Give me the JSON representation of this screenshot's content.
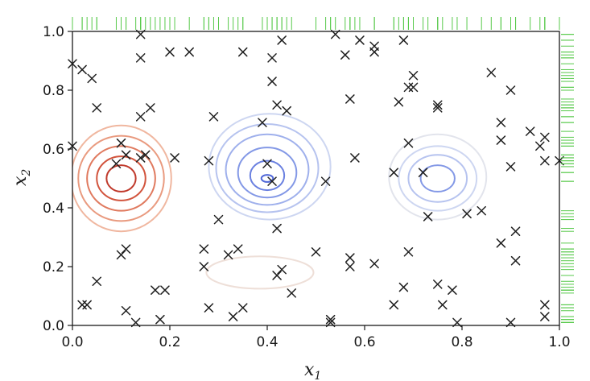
{
  "chart_data": {
    "type": "scatter",
    "overlay": "contour",
    "title": "",
    "xlabel": "x",
    "xlabel_subscript": "1",
    "ylabel": "x",
    "ylabel_subscript": "2",
    "xlim": [
      0,
      1
    ],
    "ylim": [
      0,
      1
    ],
    "xticks": [
      "0.0",
      "0.2",
      "0.4",
      "0.6",
      "0.8",
      "1.0"
    ],
    "yticks": [
      "0.0",
      "0.2",
      "0.4",
      "0.6",
      "0.8",
      "1.0"
    ],
    "grid": false,
    "legend": "none",
    "marker": "x",
    "rug_color": "#57c94a",
    "contour_colors": {
      "positive": [
        "#c0392b",
        "#d2543d",
        "#e07a5f",
        "#e99a7f",
        "#f0b7a0",
        "#f3cfc0",
        "#eedfd8"
      ],
      "negative": [
        "#5068d8",
        "#6a80e0",
        "#8398e6",
        "#9fb0ec",
        "#b6c3ef",
        "#cdd6f1",
        "#e2e4ec"
      ]
    },
    "contours": [
      {
        "sign": "positive",
        "level": 0,
        "cx": 0.1,
        "cy": 0.5,
        "rx": 0.03,
        "ry": 0.045
      },
      {
        "sign": "positive",
        "level": 1,
        "cx": 0.1,
        "cy": 0.5,
        "rx": 0.05,
        "ry": 0.075
      },
      {
        "sign": "positive",
        "level": 2,
        "cx": 0.1,
        "cy": 0.5,
        "rx": 0.07,
        "ry": 0.11
      },
      {
        "sign": "positive",
        "level": 3,
        "cx": 0.1,
        "cy": 0.5,
        "rx": 0.088,
        "ry": 0.145
      },
      {
        "sign": "positive",
        "level": 4,
        "cx": 0.1,
        "cy": 0.5,
        "rx": 0.103,
        "ry": 0.18
      },
      {
        "sign": "positive",
        "level": 6,
        "cx": 0.385,
        "cy": 0.18,
        "rx": 0.11,
        "ry": 0.055
      },
      {
        "sign": "negative",
        "level": 0,
        "cx": 0.4,
        "cy": 0.5,
        "rx": 0.012,
        "ry": 0.012
      },
      {
        "sign": "negative",
        "level": 1,
        "cx": 0.4,
        "cy": 0.51,
        "rx": 0.035,
        "ry": 0.05
      },
      {
        "sign": "negative",
        "level": 2,
        "cx": 0.4,
        "cy": 0.52,
        "rx": 0.06,
        "ry": 0.085
      },
      {
        "sign": "negative",
        "level": 3,
        "cx": 0.4,
        "cy": 0.53,
        "rx": 0.085,
        "ry": 0.12
      },
      {
        "sign": "negative",
        "level": 4,
        "cx": 0.4,
        "cy": 0.535,
        "rx": 0.105,
        "ry": 0.15
      },
      {
        "sign": "negative",
        "level": 5,
        "cx": 0.405,
        "cy": 0.54,
        "rx": 0.125,
        "ry": 0.18
      },
      {
        "sign": "negative",
        "level": 2,
        "cx": 0.75,
        "cy": 0.5,
        "rx": 0.035,
        "ry": 0.045
      },
      {
        "sign": "negative",
        "level": 4,
        "cx": 0.75,
        "cy": 0.5,
        "rx": 0.06,
        "ry": 0.08
      },
      {
        "sign": "negative",
        "level": 5,
        "cx": 0.75,
        "cy": 0.5,
        "rx": 0.08,
        "ry": 0.11
      },
      {
        "sign": "negative",
        "level": 6,
        "cx": 0.75,
        "cy": 0.505,
        "rx": 0.1,
        "ry": 0.145
      }
    ],
    "points": [
      [
        0.0,
        0.89
      ],
      [
        0.02,
        0.87
      ],
      [
        0.04,
        0.84
      ],
      [
        0.05,
        0.74
      ],
      [
        0.0,
        0.61
      ],
      [
        0.02,
        0.07
      ],
      [
        0.03,
        0.07
      ],
      [
        0.05,
        0.15
      ],
      [
        0.1,
        0.62
      ],
      [
        0.11,
        0.58
      ],
      [
        0.09,
        0.55
      ],
      [
        0.1,
        0.24
      ],
      [
        0.11,
        0.26
      ],
      [
        0.11,
        0.05
      ],
      [
        0.13,
        0.01
      ],
      [
        0.14,
        0.99
      ],
      [
        0.14,
        0.91
      ],
      [
        0.14,
        0.57
      ],
      [
        0.15,
        0.58
      ],
      [
        0.16,
        0.74
      ],
      [
        0.14,
        0.71
      ],
      [
        0.17,
        0.12
      ],
      [
        0.19,
        0.12
      ],
      [
        0.18,
        0.02
      ],
      [
        0.2,
        0.93
      ],
      [
        0.24,
        0.93
      ],
      [
        0.21,
        0.57
      ],
      [
        0.27,
        0.2
      ],
      [
        0.27,
        0.26
      ],
      [
        0.29,
        0.71
      ],
      [
        0.28,
        0.56
      ],
      [
        0.3,
        0.36
      ],
      [
        0.32,
        0.24
      ],
      [
        0.28,
        0.06
      ],
      [
        0.33,
        0.03
      ],
      [
        0.34,
        0.26
      ],
      [
        0.35,
        0.93
      ],
      [
        0.35,
        0.06
      ],
      [
        0.39,
        0.69
      ],
      [
        0.4,
        0.55
      ],
      [
        0.41,
        0.91
      ],
      [
        0.41,
        0.83
      ],
      [
        0.42,
        0.75
      ],
      [
        0.43,
        0.97
      ],
      [
        0.44,
        0.73
      ],
      [
        0.41,
        0.49
      ],
      [
        0.42,
        0.33
      ],
      [
        0.42,
        0.17
      ],
      [
        0.43,
        0.19
      ],
      [
        0.45,
        0.11
      ],
      [
        0.5,
        0.25
      ],
      [
        0.52,
        0.49
      ],
      [
        0.53,
        0.02
      ],
      [
        0.53,
        0.01
      ],
      [
        0.54,
        0.99
      ],
      [
        0.56,
        0.92
      ],
      [
        0.57,
        0.77
      ],
      [
        0.58,
        0.57
      ],
      [
        0.57,
        0.23
      ],
      [
        0.57,
        0.2
      ],
      [
        0.59,
        0.97
      ],
      [
        0.62,
        0.95
      ],
      [
        0.62,
        0.93
      ],
      [
        0.62,
        0.21
      ],
      [
        0.66,
        0.52
      ],
      [
        0.67,
        0.76
      ],
      [
        0.68,
        0.97
      ],
      [
        0.69,
        0.81
      ],
      [
        0.7,
        0.81
      ],
      [
        0.7,
        0.85
      ],
      [
        0.69,
        0.62
      ],
      [
        0.69,
        0.25
      ],
      [
        0.68,
        0.13
      ],
      [
        0.66,
        0.07
      ],
      [
        0.72,
        0.52
      ],
      [
        0.73,
        0.37
      ],
      [
        0.75,
        0.75
      ],
      [
        0.75,
        0.74
      ],
      [
        0.75,
        0.14
      ],
      [
        0.76,
        0.07
      ],
      [
        0.78,
        0.12
      ],
      [
        0.79,
        0.01
      ],
      [
        0.81,
        0.38
      ],
      [
        0.84,
        0.39
      ],
      [
        0.86,
        0.86
      ],
      [
        0.88,
        0.69
      ],
      [
        0.88,
        0.63
      ],
      [
        0.88,
        0.28
      ],
      [
        0.9,
        0.8
      ],
      [
        0.9,
        0.54
      ],
      [
        0.91,
        0.32
      ],
      [
        0.91,
        0.22
      ],
      [
        0.9,
        0.01
      ],
      [
        0.94,
        0.66
      ],
      [
        0.96,
        0.61
      ],
      [
        0.97,
        0.64
      ],
      [
        0.97,
        0.56
      ],
      [
        1.0,
        0.56
      ],
      [
        0.97,
        0.07
      ],
      [
        0.97,
        0.03
      ]
    ]
  }
}
